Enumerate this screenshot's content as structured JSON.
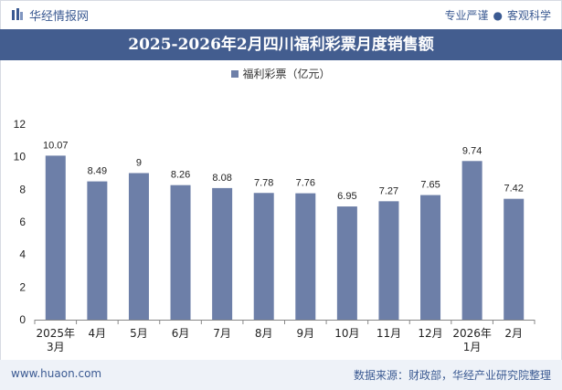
{
  "header": {
    "brand": "华经情报网",
    "tag1": "专业严谨",
    "separator": "●",
    "tag2": "客观科学"
  },
  "footer": {
    "site": "www.huaon.com",
    "source": "数据来源：财政部，华经产业研究院整理"
  },
  "colors": {
    "bar": "#6d7fa8",
    "titlebar": "#435d8f",
    "brand": "#3b5a92"
  },
  "chart_data": {
    "type": "bar",
    "title": "2025-2026年2月四川福利彩票月度销售额",
    "legend": "福利彩票（亿元）",
    "series": [
      {
        "name": "福利彩票（亿元）",
        "values": [
          10.07,
          8.49,
          9,
          8.26,
          8.08,
          7.78,
          7.76,
          6.95,
          7.27,
          7.65,
          9.74,
          7.42
        ]
      }
    ],
    "categories": [
      [
        "2025年",
        "3月"
      ],
      [
        "4月"
      ],
      [
        "5月"
      ],
      [
        "6月"
      ],
      [
        "7月"
      ],
      [
        "8月"
      ],
      [
        "9月"
      ],
      [
        "10月"
      ],
      [
        "11月"
      ],
      [
        "12月"
      ],
      [
        "2026年",
        "1月"
      ],
      [
        "2月"
      ]
    ],
    "data_labels": [
      "10.07",
      "8.49",
      "9",
      "8.26",
      "8.08",
      "7.78",
      "7.76",
      "6.95",
      "7.27",
      "7.65",
      "9.74",
      "7.42"
    ],
    "yticks": [
      0,
      2,
      4,
      6,
      8,
      10,
      12
    ],
    "ylim": [
      0,
      12
    ],
    "grid": false,
    "legend_position": "top-center"
  }
}
